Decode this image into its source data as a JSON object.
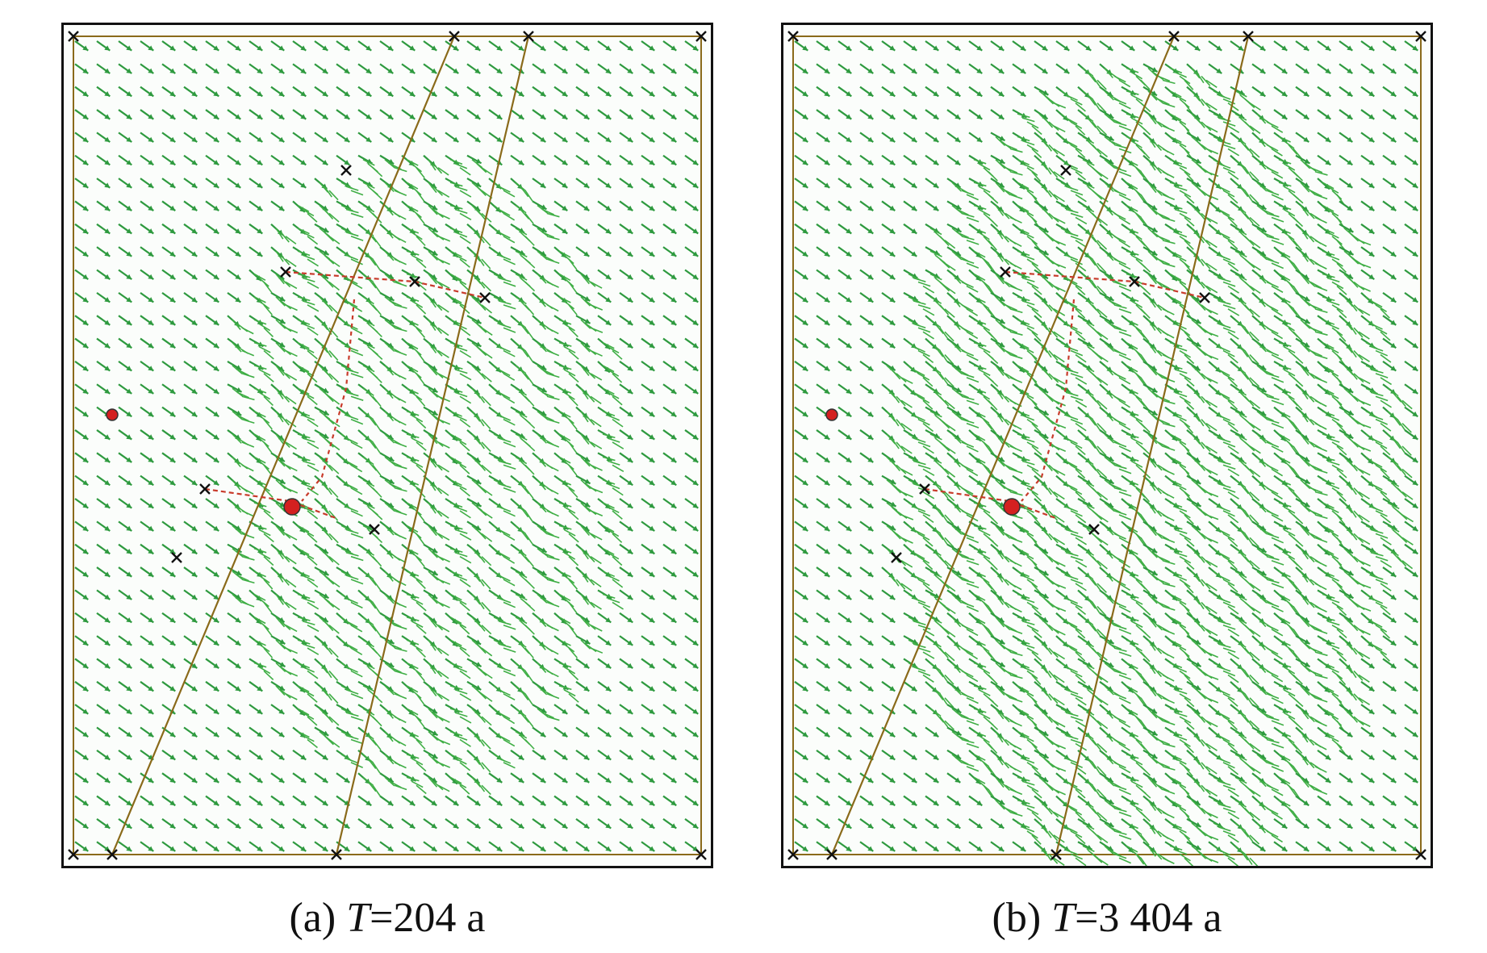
{
  "panels": [
    {
      "id": "a",
      "caption": {
        "label": "(a)",
        "variable": "T",
        "value": "=204 a"
      }
    },
    {
      "id": "b",
      "caption": {
        "label": "(b)",
        "variable": "T",
        "value": "=3 404 a"
      }
    }
  ],
  "colors": {
    "vector": "#2e9a3f",
    "vector_dense": "#3fae45",
    "boundary": "#8a6a1a",
    "well": "#d42020",
    "particle_path": "#c83a2a",
    "frame": "#111111"
  },
  "legend": {
    "vector_icon": "arrow-icon",
    "well_icon": "well-dot-icon",
    "node_icon": "cross-marker-icon"
  }
}
